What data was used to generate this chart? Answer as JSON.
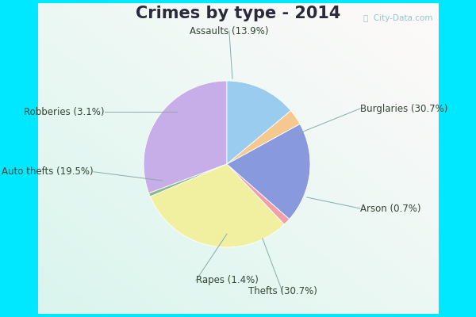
{
  "title": "Crimes by type - 2014",
  "categories": [
    "Burglaries",
    "Arson",
    "Thefts",
    "Rapes",
    "Auto thefts",
    "Robberies",
    "Assaults"
  ],
  "values": [
    30.7,
    0.7,
    30.7,
    1.4,
    19.5,
    3.1,
    13.9
  ],
  "colors": [
    "#c8aee8",
    "#8aba8a",
    "#f0f0a0",
    "#f0a0aa",
    "#8899dd",
    "#f5c890",
    "#99ccee"
  ],
  "outer_background": "#00e8ff",
  "title_color": "#2a2a3a",
  "label_color": "#334433",
  "line_color": "#88aaaa",
  "watermark": "ⓘ  City-Data.com",
  "startangle": 90,
  "label_fontsize": 8.5,
  "title_fontsize": 15
}
